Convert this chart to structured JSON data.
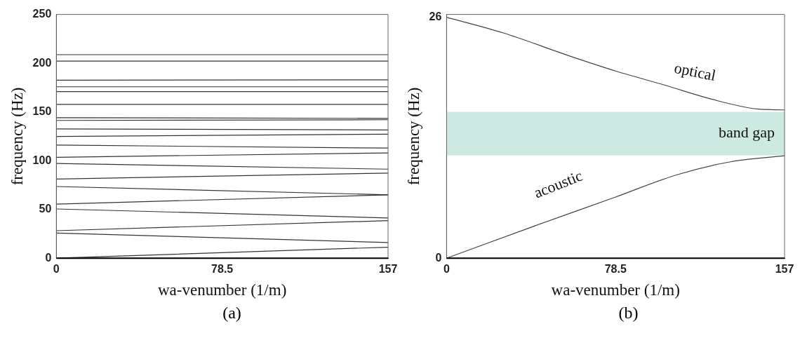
{
  "chart_data": [
    {
      "type": "line",
      "xlabel": "wa-venumber (1/m)",
      "ylabel": "frequency (Hz)",
      "xlim": [
        0,
        157
      ],
      "xticks": [
        0,
        78.5,
        157
      ],
      "ylim": [
        0,
        250
      ],
      "yticks": [
        0,
        50,
        100,
        150,
        200,
        250
      ],
      "annotations": [
        "(a)"
      ],
      "series": [
        {
          "color": "#333333",
          "x": [
            0,
            157
          ],
          "values": [
            0,
            11.3
          ]
        },
        {
          "color": "#333333",
          "x": [
            0,
            157
          ],
          "values": [
            25.8,
            16
          ]
        },
        {
          "color": "#333333",
          "x": [
            0,
            157
          ],
          "values": [
            28.2,
            38.5
          ]
        },
        {
          "color": "#333333",
          "x": [
            0,
            157
          ],
          "values": [
            50.5,
            41.3
          ]
        },
        {
          "color": "#333333",
          "x": [
            0,
            157
          ],
          "values": [
            55.4,
            65
          ]
        },
        {
          "color": "#333333",
          "x": [
            0,
            157
          ],
          "values": [
            73.5,
            65
          ]
        },
        {
          "color": "#333333",
          "x": [
            0,
            157
          ],
          "values": [
            81.2,
            87.3
          ]
        },
        {
          "color": "#333333",
          "x": [
            0,
            157
          ],
          "values": [
            97.2,
            91.3
          ]
        },
        {
          "color": "#333333",
          "x": [
            0,
            157
          ],
          "values": [
            103.5,
            108
          ]
        },
        {
          "color": "#333333",
          "x": [
            0,
            157
          ],
          "values": [
            116,
            112.9
          ]
        },
        {
          "color": "#333333",
          "x": [
            0,
            157
          ],
          "values": [
            124.9,
            127.2
          ]
        },
        {
          "color": "#333333",
          "x": [
            0,
            157
          ],
          "values": [
            132.6,
            131.5
          ]
        },
        {
          "color": "#333333",
          "x": [
            0,
            157
          ],
          "values": [
            141.3,
            142
          ]
        },
        {
          "color": "#333333",
          "x": [
            0,
            157
          ],
          "values": [
            144.1,
            143.4
          ]
        },
        {
          "color": "#333333",
          "x": [
            0,
            157
          ],
          "values": [
            157.7,
            157.7
          ]
        },
        {
          "color": "#333333",
          "x": [
            0,
            157
          ],
          "values": [
            170.9,
            170.9
          ]
        },
        {
          "color": "#333333",
          "x": [
            0,
            157
          ],
          "values": [
            175.8,
            175.8
          ]
        },
        {
          "color": "#333333",
          "x": [
            0,
            157
          ],
          "values": [
            182.6,
            182.9
          ]
        },
        {
          "color": "#333333",
          "x": [
            0,
            157
          ],
          "values": [
            202.1,
            202.1
          ]
        },
        {
          "color": "#333333",
          "x": [
            0,
            157
          ],
          "values": [
            208.7,
            208.7
          ]
        }
      ]
    },
    {
      "type": "line",
      "xlabel": "wa-venumber (1/m)",
      "ylabel": "frequency (Hz)",
      "xlim": [
        0,
        157
      ],
      "xticks": [
        0,
        78.5,
        157
      ],
      "ylim": [
        0,
        26.3
      ],
      "yticks": [
        0,
        26
      ],
      "annotations": [
        "optical",
        "acoustic",
        "(b)"
      ],
      "bands": [
        {
          "axis": "y",
          "from": 11.1,
          "to": 15.8,
          "label": "band gap",
          "color": "#cceae2"
        }
      ],
      "series": [
        {
          "color": "#444444",
          "x": [
            0,
            26.4,
            57.4,
            78.5,
            100.9,
            125.7,
            144.3,
            157
          ],
          "values": [
            26,
            24.3,
            21.8,
            20.2,
            18.7,
            17,
            16.1,
            16
          ]
        },
        {
          "color": "#444444",
          "x": [
            0,
            38.8,
            78.5,
            107,
            131.9,
            157
          ],
          "values": [
            0,
            3.3,
            6.6,
            9,
            10.4,
            11.05
          ]
        }
      ]
    }
  ]
}
